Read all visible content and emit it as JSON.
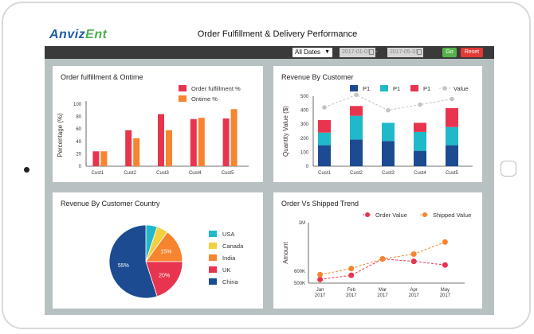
{
  "app": {
    "logo_main": "Anviz",
    "logo_accent": "Ent",
    "title": "Order Fulfillment & Delivery Performance"
  },
  "filters": {
    "date_select": "All Dates",
    "date_from": "2017-01-01",
    "date_dash": "-",
    "date_to": "2017-05-31",
    "go_label": "Go",
    "reset_label": "Reset"
  },
  "panels": {
    "fulfillment": {
      "title": "Order fulfillment & Ontime"
    },
    "revenue_customer": {
      "title": "Revenue By Customer"
    },
    "revenue_country": {
      "title": "Revenue By Customer Country"
    },
    "trend": {
      "title": "Order Vs Shipped Trend"
    }
  },
  "colors": {
    "red": "#e8344e",
    "orange": "#f7842e",
    "navy": "#1d4b91",
    "teal": "#1fb9c9",
    "yellow": "#f4d03f",
    "gray": "#c4c4c4"
  },
  "chart_data": [
    {
      "id": "fulfillment",
      "type": "bar",
      "title": "Order fulfillment & Ontime",
      "ylabel": "Percentage (%)",
      "xlabel": "",
      "ylim": [
        0,
        100
      ],
      "yticks": [
        0,
        20,
        40,
        60,
        80,
        100
      ],
      "categories": [
        "Cust1",
        "Cust2",
        "Cust3",
        "Cust4",
        "Cust5"
      ],
      "legend_position": "top-right",
      "series": [
        {
          "name": "Order fulfillment %",
          "color": "#e8344e",
          "values": [
            24,
            58,
            84,
            76,
            77
          ]
        },
        {
          "name": "Ontime %",
          "color": "#f7842e",
          "values": [
            24,
            45,
            58,
            78,
            92
          ]
        }
      ]
    },
    {
      "id": "revenue_customer",
      "type": "bar",
      "stacked": true,
      "title": "Revenue By Customer",
      "ylabel": "Quantity Value ($)",
      "xlabel": "",
      "ylim": [
        0,
        500
      ],
      "yticks": [
        0,
        100,
        200,
        300,
        400,
        500
      ],
      "categories": [
        "Cust1",
        "Cust2",
        "Cust3",
        "Cust4",
        "Cust5"
      ],
      "legend_position": "top",
      "series": [
        {
          "name": "P1",
          "color": "#1d4b91",
          "values": [
            150,
            190,
            180,
            110,
            150
          ]
        },
        {
          "name": "P1",
          "color": "#1fb9c9",
          "values": [
            90,
            170,
            130,
            135,
            130
          ]
        },
        {
          "name": "P1",
          "color": "#e8344e",
          "values": [
            90,
            70,
            0,
            65,
            135
          ]
        }
      ],
      "line": {
        "name": "Value",
        "color": "#c4c4c4",
        "values": [
          420,
          510,
          400,
          440,
          480
        ]
      }
    },
    {
      "id": "revenue_country",
      "type": "pie",
      "title": "Revenue By Customer Country",
      "legend_position": "right",
      "slices": [
        {
          "label": "USA",
          "value": 5,
          "color": "#1fb9c9",
          "data_label": ""
        },
        {
          "label": "Canada",
          "value": 5,
          "color": "#f4d03f",
          "data_label": ""
        },
        {
          "label": "India",
          "value": 15,
          "color": "#f7842e",
          "data_label": "15%"
        },
        {
          "label": "UK",
          "value": 20,
          "color": "#e8344e",
          "data_label": "20%"
        },
        {
          "label": "China",
          "value": 55,
          "color": "#1d4b91",
          "data_label": "55%"
        }
      ]
    },
    {
      "id": "trend",
      "type": "line",
      "title": "Order Vs Shipped Trend",
      "ylabel": "Amount",
      "xlabel": "",
      "ylim": [
        500000,
        1000000
      ],
      "yticks": [
        500000,
        600000,
        1000000
      ],
      "ytick_labels": [
        "500K",
        "600K",
        "1M"
      ],
      "categories": [
        {
          "month": "Jan",
          "year": "2017"
        },
        {
          "month": "Feb",
          "year": "2017"
        },
        {
          "month": "Mar",
          "year": "2017"
        },
        {
          "month": "Apr",
          "year": "2017"
        },
        {
          "month": "May",
          "year": "2017"
        }
      ],
      "legend_position": "top",
      "series": [
        {
          "name": "Order Value",
          "color": "#e8344e",
          "values": [
            530000,
            565000,
            700000,
            680000,
            650000
          ]
        },
        {
          "name": "Shipped Value",
          "color": "#f7842e",
          "values": [
            570000,
            620000,
            700000,
            740000,
            840000
          ]
        }
      ]
    }
  ]
}
